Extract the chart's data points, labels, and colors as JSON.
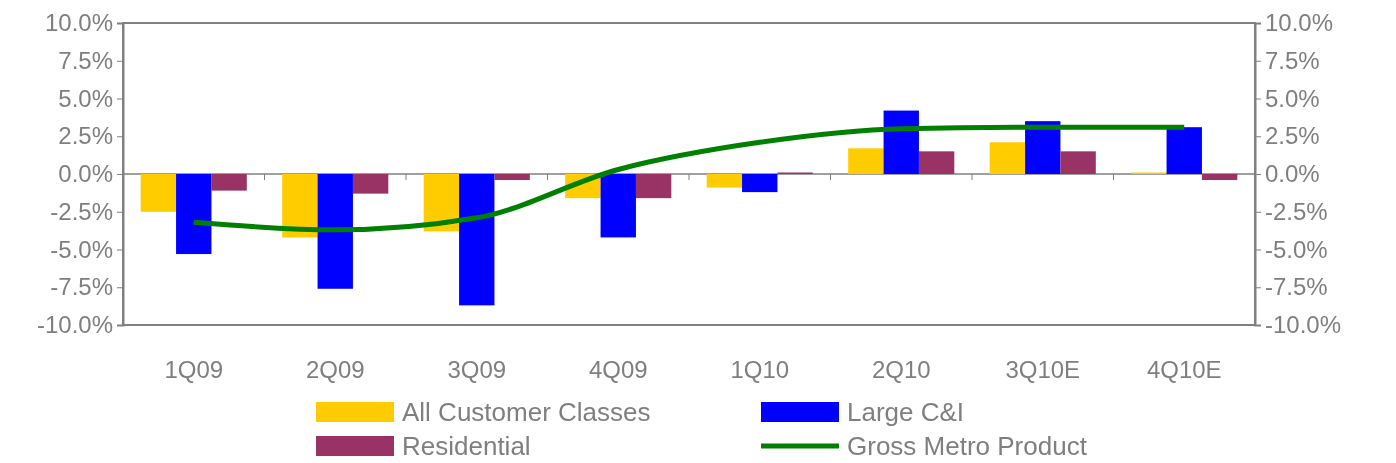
{
  "chart_data": {
    "type": "bar",
    "categories": [
      "1Q09",
      "2Q09",
      "3Q09",
      "4Q09",
      "1Q10",
      "2Q10",
      "3Q10E",
      "4Q10E"
    ],
    "series": [
      {
        "name": "All Customer Classes",
        "color": "#ffcc00",
        "values": [
          -2.5,
          -4.2,
          -3.8,
          -1.6,
          -0.9,
          1.7,
          2.1,
          0.1
        ]
      },
      {
        "name": "Large C&I",
        "color": "#0000ff",
        "values": [
          -5.3,
          -7.6,
          -8.7,
          -4.2,
          -1.2,
          4.2,
          3.5,
          3.1
        ]
      },
      {
        "name": "Residential",
        "color": "#993366",
        "values": [
          -1.1,
          -1.3,
          -0.4,
          -1.6,
          0.1,
          1.5,
          1.5,
          -0.4
        ]
      },
      {
        "name": "Gross Metro Product",
        "type": "line",
        "color": "#008000",
        "values": [
          -3.2,
          -3.7,
          -2.9,
          0.3,
          2.1,
          3.0,
          3.1,
          3.1
        ]
      }
    ],
    "ylim": [
      -10,
      10
    ],
    "yticks": [
      {
        "value": -10,
        "label": "-10.0%"
      },
      {
        "value": -7.5,
        "label": "-7.5%"
      },
      {
        "value": -5,
        "label": "-5.0%"
      },
      {
        "value": -2.5,
        "label": "-2.5%"
      },
      {
        "value": 0,
        "label": "0.0%"
      },
      {
        "value": 2.5,
        "label": "2.5%"
      },
      {
        "value": 5,
        "label": "5.0%"
      },
      {
        "value": 7.5,
        "label": "7.5%"
      },
      {
        "value": 10,
        "label": "10.0%"
      }
    ],
    "y2lim": [
      -10,
      10
    ],
    "y2ticks": [
      {
        "value": -10,
        "label": "-10.0%"
      },
      {
        "value": -7.5,
        "label": "-7.5%"
      },
      {
        "value": -5,
        "label": "-5.0%"
      },
      {
        "value": -2.5,
        "label": "-2.5%"
      },
      {
        "value": 0,
        "label": "0.0%"
      },
      {
        "value": 2.5,
        "label": "2.5%"
      },
      {
        "value": 5,
        "label": "5.0%"
      },
      {
        "value": 7.5,
        "label": "7.5%"
      },
      {
        "value": 10,
        "label": "10.0%"
      }
    ],
    "legend": "bottom",
    "marker": "none",
    "line_style": "solid"
  }
}
